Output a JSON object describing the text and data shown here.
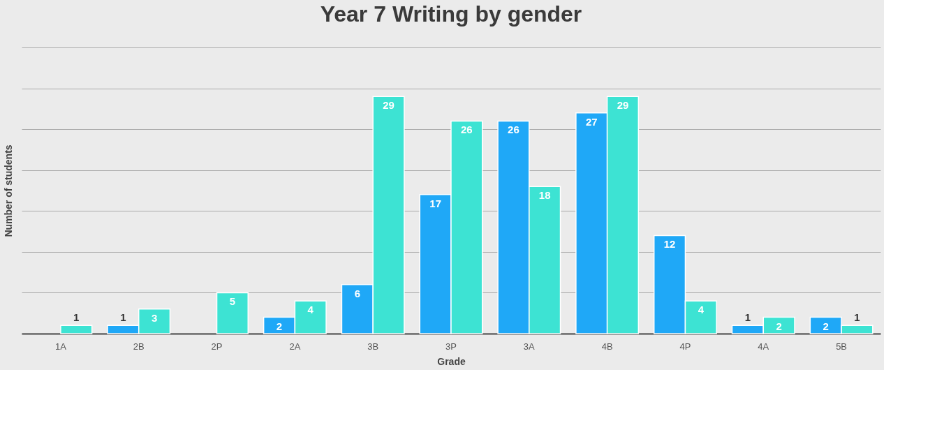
{
  "chart_data": {
    "type": "bar",
    "title": "Year 7 Writing by gender",
    "xlabel": "Grade",
    "ylabel": "Number of students",
    "categories": [
      "1A",
      "2B",
      "2P",
      "2A",
      "3B",
      "3P",
      "3A",
      "4B",
      "4P",
      "4A",
      "5B"
    ],
    "series": [
      {
        "color": "#1fa8f7",
        "values": [
          null,
          1,
          null,
          2,
          6,
          17,
          26,
          27,
          12,
          1,
          2
        ]
      },
      {
        "color": "#3de3d3",
        "values": [
          1,
          3,
          5,
          4,
          29,
          26,
          18,
          29,
          4,
          2,
          1
        ]
      }
    ],
    "ylim": [
      0,
      35
    ],
    "yticks": [
      {
        "value": 0,
        "label": null
      },
      {
        "value": 5,
        "label": null
      },
      {
        "value": 10,
        "label": null
      },
      {
        "value": 15,
        "label": null
      },
      {
        "value": 20,
        "label": null
      },
      {
        "value": 25,
        "label": null
      },
      {
        "value": 30,
        "label": null
      },
      {
        "value": 35,
        "label": null
      }
    ],
    "grid": "y",
    "legend": false,
    "tick_labels": "x",
    "data_labels": true
  }
}
